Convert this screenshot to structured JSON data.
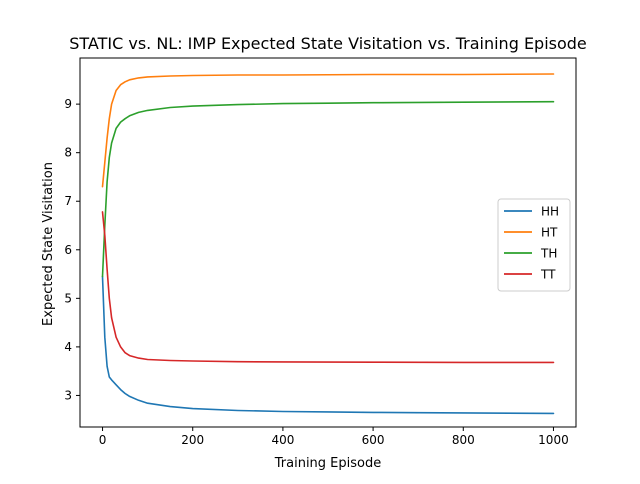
{
  "chart_data": {
    "type": "line",
    "title": "STATIC vs. NL: IMP Expected State Visitation vs. Training Episode",
    "xlabel": "Training Episode",
    "ylabel": "Expected State Visitation",
    "xlim": [
      -50,
      1050
    ],
    "ylim": [
      2.35,
      9.95
    ],
    "xticks": [
      0,
      200,
      400,
      600,
      800,
      1000
    ],
    "yticks": [
      3,
      4,
      5,
      6,
      7,
      8,
      9
    ],
    "grid": false,
    "legend_position": "center-right",
    "series": [
      {
        "name": "HH",
        "color": "#1f77b4",
        "points": [
          [
            0,
            5.45
          ],
          [
            5,
            4.2
          ],
          [
            10,
            3.6
          ],
          [
            15,
            3.38
          ],
          [
            20,
            3.32
          ],
          [
            30,
            3.22
          ],
          [
            40,
            3.12
          ],
          [
            50,
            3.04
          ],
          [
            60,
            2.98
          ],
          [
            80,
            2.9
          ],
          [
            100,
            2.84
          ],
          [
            150,
            2.77
          ],
          [
            200,
            2.73
          ],
          [
            300,
            2.69
          ],
          [
            400,
            2.67
          ],
          [
            500,
            2.66
          ],
          [
            600,
            2.65
          ],
          [
            700,
            2.645
          ],
          [
            800,
            2.64
          ],
          [
            900,
            2.635
          ],
          [
            1000,
            2.63
          ]
        ]
      },
      {
        "name": "HT",
        "color": "#ff7f0e",
        "points": [
          [
            0,
            7.3
          ],
          [
            5,
            7.8
          ],
          [
            10,
            8.3
          ],
          [
            15,
            8.7
          ],
          [
            20,
            9.0
          ],
          [
            30,
            9.28
          ],
          [
            40,
            9.4
          ],
          [
            50,
            9.46
          ],
          [
            60,
            9.5
          ],
          [
            80,
            9.54
          ],
          [
            100,
            9.56
          ],
          [
            150,
            9.58
          ],
          [
            200,
            9.59
          ],
          [
            300,
            9.6
          ],
          [
            400,
            9.6
          ],
          [
            600,
            9.61
          ],
          [
            800,
            9.61
          ],
          [
            1000,
            9.62
          ]
        ]
      },
      {
        "name": "TH",
        "color": "#2ca02c",
        "points": [
          [
            0,
            5.45
          ],
          [
            5,
            6.5
          ],
          [
            10,
            7.4
          ],
          [
            15,
            7.9
          ],
          [
            20,
            8.2
          ],
          [
            30,
            8.5
          ],
          [
            40,
            8.63
          ],
          [
            50,
            8.7
          ],
          [
            60,
            8.76
          ],
          [
            80,
            8.83
          ],
          [
            100,
            8.87
          ],
          [
            150,
            8.93
          ],
          [
            200,
            8.96
          ],
          [
            300,
            8.99
          ],
          [
            400,
            9.01
          ],
          [
            500,
            9.02
          ],
          [
            600,
            9.03
          ],
          [
            800,
            9.04
          ],
          [
            1000,
            9.05
          ]
        ]
      },
      {
        "name": "TT",
        "color": "#d62728",
        "points": [
          [
            0,
            6.78
          ],
          [
            5,
            6.3
          ],
          [
            10,
            5.6
          ],
          [
            15,
            5.0
          ],
          [
            20,
            4.6
          ],
          [
            30,
            4.2
          ],
          [
            40,
            4.0
          ],
          [
            50,
            3.88
          ],
          [
            60,
            3.82
          ],
          [
            80,
            3.77
          ],
          [
            100,
            3.74
          ],
          [
            150,
            3.72
          ],
          [
            200,
            3.71
          ],
          [
            300,
            3.695
          ],
          [
            400,
            3.69
          ],
          [
            600,
            3.685
          ],
          [
            800,
            3.68
          ],
          [
            1000,
            3.68
          ]
        ]
      }
    ]
  }
}
